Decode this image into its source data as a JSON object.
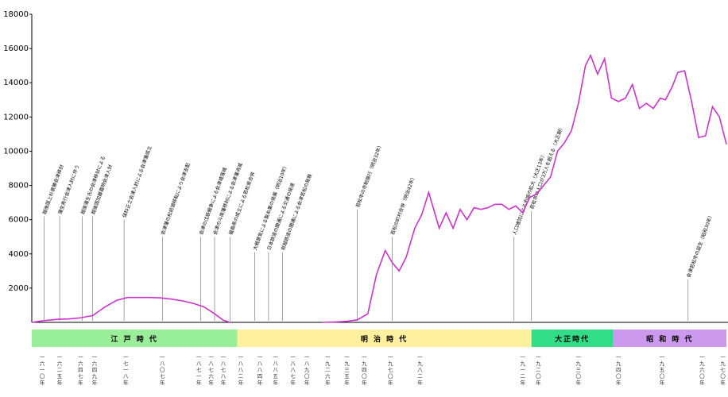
{
  "chart_data": {
    "type": "line",
    "title": "",
    "xlabel": "",
    "ylabel": "",
    "ylim": [
      0,
      18000
    ],
    "yticks": [
      2000,
      4000,
      6000,
      8000,
      10000,
      12000,
      14000,
      16000,
      18000
    ],
    "xlim": [
      1593,
      1992
    ],
    "grid": false,
    "series": [
      {
        "color": "#cc33cc",
        "points": [
          [
            1593,
            0
          ],
          [
            1600,
            100
          ],
          [
            1608,
            180
          ],
          [
            1614,
            200
          ],
          [
            1620,
            250
          ],
          [
            1628,
            400
          ],
          [
            1635,
            900
          ],
          [
            1642,
            1300
          ],
          [
            1648,
            1450
          ],
          [
            1655,
            1450
          ],
          [
            1661,
            1450
          ],
          [
            1667,
            1430
          ],
          [
            1674,
            1350
          ],
          [
            1680,
            1250
          ],
          [
            1686,
            1100
          ],
          [
            1692,
            900
          ],
          [
            1698,
            500
          ],
          [
            1703,
            120
          ],
          [
            1707,
            0
          ],
          [
            1760,
            0
          ],
          [
            1768,
            30
          ],
          [
            1774,
            60
          ],
          [
            1780,
            150
          ],
          [
            1786,
            500
          ],
          [
            1791,
            2800
          ],
          [
            1796,
            4200
          ],
          [
            1800,
            3500
          ],
          [
            1804,
            3000
          ],
          [
            1808,
            3800
          ],
          [
            1813,
            5500
          ],
          [
            1817,
            6300
          ],
          [
            1821,
            7600
          ],
          [
            1827,
            5500
          ],
          [
            1831,
            6400
          ],
          [
            1835,
            5500
          ],
          [
            1839,
            6600
          ],
          [
            1843,
            6000
          ],
          [
            1847,
            6700
          ],
          [
            1851,
            6600
          ],
          [
            1855,
            6700
          ],
          [
            1859,
            6900
          ],
          [
            1863,
            6900
          ],
          [
            1867,
            6600
          ],
          [
            1871,
            6800
          ],
          [
            1875,
            6400
          ],
          [
            1879,
            7300
          ],
          [
            1883,
            7500
          ],
          [
            1887,
            8000
          ],
          [
            1891,
            8500
          ],
          [
            1895,
            10000
          ],
          [
            1899,
            10500
          ],
          [
            1903,
            11200
          ],
          [
            1907,
            12800
          ],
          [
            1911,
            15000
          ],
          [
            1914,
            15600
          ],
          [
            1918,
            14500
          ],
          [
            1922,
            15400
          ],
          [
            1926,
            13100
          ],
          [
            1930,
            12900
          ],
          [
            1934,
            13100
          ],
          [
            1938,
            13900
          ],
          [
            1942,
            12500
          ],
          [
            1946,
            12800
          ],
          [
            1950,
            12500
          ],
          [
            1954,
            13100
          ],
          [
            1957,
            13000
          ],
          [
            1961,
            13800
          ],
          [
            1964,
            14600
          ],
          [
            1968,
            14700
          ],
          [
            1972,
            12900
          ],
          [
            1976,
            10800
          ],
          [
            1980,
            10900
          ],
          [
            1984,
            12600
          ],
          [
            1988,
            12000
          ],
          [
            1992,
            10400
          ]
        ]
      }
    ],
    "eras": [
      {
        "label": "江 戸 時 代",
        "color": "#99ee99",
        "from": 1593,
        "to": 1711
      },
      {
        "label": "明 治 時 代",
        "color": "#fff0a0",
        "from": 1711,
        "to": 1880
      },
      {
        "label": "大正時代",
        "color": "#33dd88",
        "from": 1880,
        "to": 1927
      },
      {
        "label": "昭 和 時 代",
        "color": "#cc99ee",
        "from": 1927,
        "to": 1992
      }
    ],
    "year_labels": [
      {
        "x": 1599,
        "text": "一六一〇年"
      },
      {
        "x": 1609,
        "text": "一六二五年"
      },
      {
        "x": 1621,
        "text": "一六四七年"
      },
      {
        "x": 1629,
        "text": "一六四九年"
      },
      {
        "x": 1647,
        "text": "一七一八年"
      },
      {
        "x": 1668,
        "text": "一八〇七年"
      },
      {
        "x": 1689,
        "text": "一八七一年"
      },
      {
        "x": 1696,
        "text": "一八七六年"
      },
      {
        "x": 1703,
        "text": "一八七八年"
      },
      {
        "x": 1713,
        "text": "一八八二年"
      },
      {
        "x": 1724,
        "text": "一八八四年"
      },
      {
        "x": 1733,
        "text": "一八八五年"
      },
      {
        "x": 1743,
        "text": "一八八七年"
      },
      {
        "x": 1751,
        "text": "一八九〇年"
      },
      {
        "x": 1763,
        "text": "一九二六年"
      },
      {
        "x": 1774,
        "text": "一九三五年"
      },
      {
        "x": 1784,
        "text": "一九四〇年"
      },
      {
        "x": 1799,
        "text": "一九七〇年"
      },
      {
        "x": 1816,
        "text": "一九八二年"
      },
      {
        "x": 1875,
        "text": "一九一二年"
      },
      {
        "x": 1884,
        "text": "一九二〇年"
      },
      {
        "x": 1907,
        "text": "一九三〇年"
      },
      {
        "x": 1930,
        "text": "一九四〇年"
      },
      {
        "x": 1955,
        "text": "一九五〇年"
      },
      {
        "x": 1978,
        "text": "一九六〇年"
      },
      {
        "x": 1990,
        "text": "一九七〇年"
      }
    ],
    "annotations": [
      {
        "x": 1600,
        "y": 6200,
        "text": "越後国上杉景勝会津移封"
      },
      {
        "x": 1609,
        "y": 6200,
        "text": "蒲生秀行会津入封に伴う"
      },
      {
        "x": 1622,
        "y": 6200,
        "text": "越後蒲生氏の会津移封による"
      },
      {
        "x": 1628,
        "y": 6200,
        "text": "越後国加藤嘉明会津入封"
      },
      {
        "x": 1646,
        "y": 6000,
        "text": "保科正之会津入封による会津藩成立"
      },
      {
        "x": 1668,
        "y": 5000,
        "text": "会津藩の松前領移転により会津支配"
      },
      {
        "x": 1690,
        "y": 5000,
        "text": "会津の戊辰戦争による会津城落城"
      },
      {
        "x": 1698,
        "y": 5000,
        "text": "会津の斗南藩移封による会津藩消滅"
      },
      {
        "x": 1707,
        "y": 5000,
        "text": "福島県の成立による若松県合併"
      },
      {
        "x": 1721,
        "y": 4100,
        "text": "大戦景気による製糸業の発展（明治10年）"
      },
      {
        "x": 1729,
        "y": 4100,
        "text": "日本鉄道の開通による交通の発達"
      },
      {
        "x": 1737,
        "y": 4100,
        "text": "岩越鉄道の開通による会津若松の発展"
      },
      {
        "x": 1780,
        "y": 6600,
        "text": "若松市の市制施行（明治32年）"
      },
      {
        "x": 1800,
        "y": 5000,
        "text": "若松の町村合併（明治42年）"
      },
      {
        "x": 1870,
        "y": 5000,
        "text": "人口増加による市域の拡大（大正13年）"
      },
      {
        "x": 1880,
        "y": 6500,
        "text": "若松市の人口が3万人を超える（大正期）"
      },
      {
        "x": 1970,
        "y": 2500,
        "text": "会津若松市の誕生（昭和30年）"
      }
    ]
  }
}
